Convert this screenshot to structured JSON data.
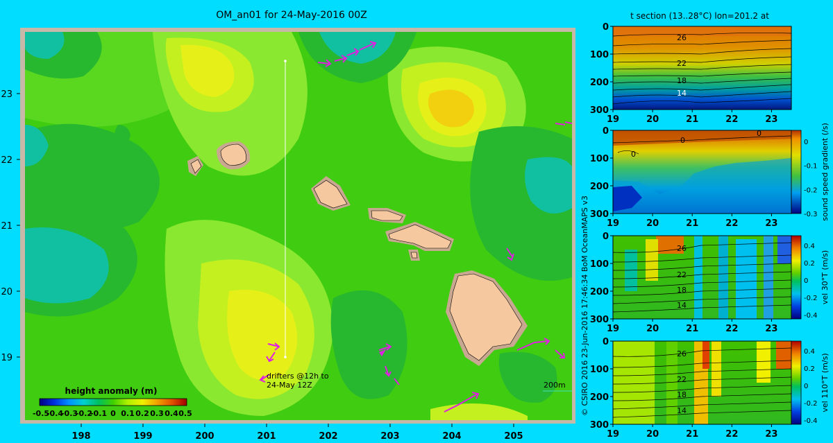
{
  "colors": {
    "background": "#00ddff",
    "frame": "#c8b8a8",
    "land": "#f5c8a0",
    "land_shelf": "#c8a890",
    "drifter": "#e020e0",
    "track": "#ffffff"
  },
  "map": {
    "title": "OM_an01 for 24-May-2016 00Z",
    "x_ticks": [
      "198",
      "199",
      "200",
      "201",
      "202",
      "203",
      "204",
      "205"
    ],
    "y_ticks": [
      "23",
      "22",
      "21",
      "20",
      "19"
    ],
    "colorbar_title": "height anomaly  (m)",
    "colorbar_ticks": [
      "-0.5",
      "-0.4",
      "-0.3",
      "-0.2",
      "-0.1",
      "0",
      "0.1",
      "0.2",
      "0.3",
      "0.4",
      "0.5"
    ],
    "drifters_label_1": "drifters @12h to",
    "drifters_label_2": "24-May 12Z",
    "depth_label": "200m"
  },
  "side_text": "© CSIRO 2016   23-Jun-2016 17:46:34 BoM OceanMAPS v3",
  "panels": [
    {
      "id": "temperature-section",
      "title": "t section (13..28°C) lon=201.2 at",
      "x_ticks": [
        "19",
        "20",
        "21",
        "22",
        "23"
      ],
      "y_ticks": [
        "0",
        "100",
        "200",
        "300"
      ],
      "contour_labels": [
        "26",
        "22",
        "18",
        "14"
      ],
      "unit_label": "",
      "cb_ticks": []
    },
    {
      "id": "sound-speed-section",
      "title": "",
      "x_ticks": [
        "19",
        "20",
        "21",
        "22",
        "23"
      ],
      "y_ticks": [
        "0",
        "100",
        "200",
        "300"
      ],
      "contour_labels": [
        "0",
        "0",
        "0"
      ],
      "unit_label": "sound speed gradient (/s)",
      "cb_ticks": [
        "0",
        "-0.1",
        "-0.2",
        "-0.3"
      ]
    },
    {
      "id": "velocity-30-section",
      "title": "",
      "x_ticks": [
        "19",
        "20",
        "21",
        "22",
        "23"
      ],
      "y_ticks": [
        "0",
        "100",
        "200",
        "300"
      ],
      "contour_labels": [
        "26",
        "22",
        "18",
        "14"
      ],
      "unit_label": "vel 30°T (m/s)",
      "cb_ticks": [
        "0.4",
        "0.2",
        "0",
        "-0.2",
        "-0.4"
      ]
    },
    {
      "id": "velocity-110-section",
      "title": "",
      "x_ticks": [
        "19",
        "20",
        "21",
        "22",
        "23"
      ],
      "y_ticks": [
        "0",
        "100",
        "200",
        "300"
      ],
      "contour_labels": [
        "26",
        "22",
        "18",
        "14"
      ],
      "unit_label": "vel 110°T (m/s)",
      "cb_ticks": [
        "0.4",
        "0.2",
        "0",
        "-0.2",
        "-0.4"
      ]
    }
  ],
  "chart_data": [
    {
      "type": "heatmap",
      "title": "OM_an01 for 24-May-2016 00Z",
      "xlim": [
        197.1,
        206
      ],
      "ylim": [
        18.1,
        24.0
      ],
      "x_ticks": [
        198,
        199,
        200,
        201,
        202,
        203,
        204,
        205
      ],
      "y_ticks": [
        19,
        20,
        21,
        22,
        23
      ],
      "colorbar": {
        "label": "height anomaly  (m)",
        "range": [
          -0.5,
          0.5
        ]
      },
      "features": {
        "highs": [
          {
            "lon": 200.0,
            "lat": 23.5,
            "value": 0.15
          },
          {
            "lon": 203.9,
            "lat": 23.0,
            "value": 0.22
          },
          {
            "lon": 201.2,
            "lat": 19.3,
            "value": 0.15
          }
        ],
        "lows": [
          {
            "lon": 202.3,
            "lat": 23.7,
            "value": -0.1
          },
          {
            "lon": 197.9,
            "lat": 22.4,
            "value": -0.05
          },
          {
            "lon": 198.4,
            "lat": 20.5,
            "value": -0.05
          },
          {
            "lon": 205.8,
            "lat": 21.6,
            "value": -0.05
          }
        ]
      }
    },
    {
      "type": "heatmap",
      "title": "t section (13..28°C) lon=201.2 at",
      "xlim": [
        19,
        23.5
      ],
      "ylim": [
        300,
        0
      ],
      "contour_values": [
        26,
        22,
        18,
        14
      ]
    },
    {
      "type": "heatmap",
      "xlim": [
        19,
        23.5
      ],
      "ylim": [
        300,
        0
      ],
      "colorbar": {
        "label": "sound speed gradient (/s)",
        "range": [
          -0.3,
          0.05
        ]
      }
    },
    {
      "type": "heatmap",
      "xlim": [
        19,
        23.5
      ],
      "ylim": [
        300,
        0
      ],
      "colorbar": {
        "label": "vel 30°T (m/s)",
        "range": [
          -0.4,
          0.5
        ]
      }
    },
    {
      "type": "heatmap",
      "xlim": [
        19,
        23.5
      ],
      "ylim": [
        300,
        0
      ],
      "colorbar": {
        "label": "vel 110°T (m/s)",
        "range": [
          -0.4,
          0.5
        ]
      }
    }
  ]
}
